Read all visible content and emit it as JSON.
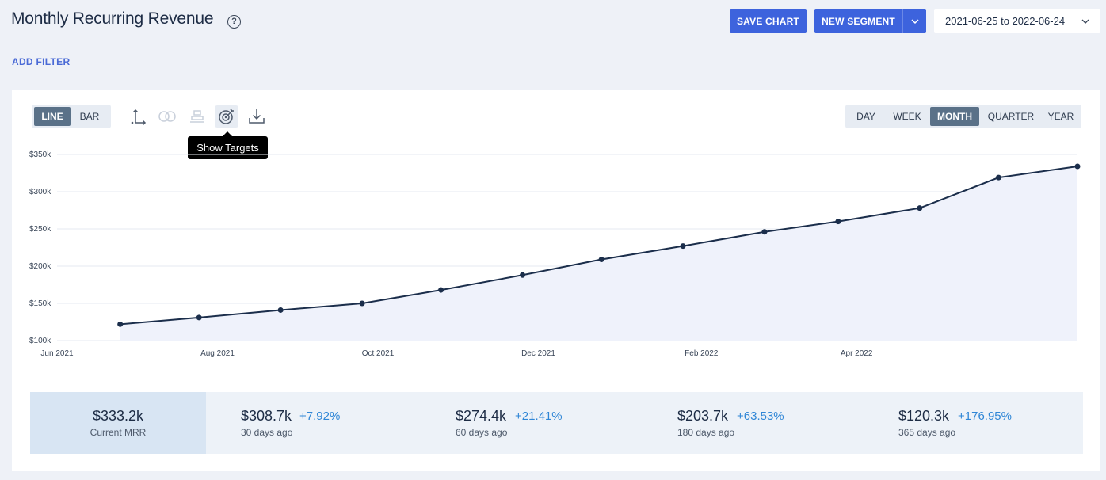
{
  "header": {
    "title": "Monthly Recurring Revenue",
    "help": "?",
    "save_chart_label": "SAVE CHART",
    "new_segment_label": "NEW SEGMENT",
    "date_range": "2021-06-25 to 2022-06-24",
    "add_filter_label": "ADD FILTER"
  },
  "toolbar": {
    "chart_types": [
      {
        "label": "LINE",
        "active": true
      },
      {
        "label": "BAR",
        "active": false
      }
    ],
    "icons": [
      "axis-icon",
      "compare-icon",
      "stack-icon",
      "target-icon",
      "download-icon"
    ],
    "tooltip": "Show Targets",
    "intervals": [
      {
        "label": "DAY",
        "active": false
      },
      {
        "label": "WEEK",
        "active": false
      },
      {
        "label": "MONTH",
        "active": true
      },
      {
        "label": "QUARTER",
        "active": false
      },
      {
        "label": "YEAR",
        "active": false
      }
    ]
  },
  "chart_data": {
    "type": "area",
    "x": [
      "2021-06-25",
      "2021-07-25",
      "2021-08-25",
      "2021-09-25",
      "2021-10-25",
      "2021-11-25",
      "2021-12-25",
      "2022-01-25",
      "2022-02-25",
      "2022-03-25",
      "2022-04-25",
      "2022-05-25",
      "2022-06-24"
    ],
    "values": [
      122000,
      131000,
      141000,
      150000,
      168000,
      188000,
      209000,
      227000,
      246000,
      260000,
      278000,
      319000,
      334000
    ],
    "ylim": [
      100000,
      350000
    ],
    "y_ticks": [
      {
        "value": 100000,
        "label": "$100k"
      },
      {
        "value": 150000,
        "label": "$150k"
      },
      {
        "value": 200000,
        "label": "$200k"
      },
      {
        "value": 250000,
        "label": "$250k"
      },
      {
        "value": 300000,
        "label": "$300k"
      },
      {
        "value": 350000,
        "label": "$350k"
      }
    ],
    "x_ticks": [
      {
        "value": "2021-06-01",
        "label": "Jun 2021"
      },
      {
        "value": "2021-08-01",
        "label": "Aug 2021"
      },
      {
        "value": "2021-10-01",
        "label": "Oct 2021"
      },
      {
        "value": "2021-12-01",
        "label": "Dec 2021"
      },
      {
        "value": "2022-02-01",
        "label": "Feb 2022"
      },
      {
        "value": "2022-04-01",
        "label": "Apr 2022"
      }
    ],
    "grid": true,
    "line_color": "#1b2e4b",
    "fill_color": "#eff2fb"
  },
  "stats": {
    "current": {
      "value": "$333.2k",
      "label": "Current MRR"
    },
    "history": [
      {
        "value": "$308.7k",
        "change": "+7.92%",
        "label": "30 days ago"
      },
      {
        "value": "$274.4k",
        "change": "+21.41%",
        "label": "60 days ago"
      },
      {
        "value": "$203.7k",
        "change": "+63.53%",
        "label": "180 days ago"
      },
      {
        "value": "$120.3k",
        "change": "+176.95%",
        "label": "365 days ago"
      }
    ]
  },
  "colors": {
    "accent": "#3d63dd",
    "change": "#2f86d6",
    "active_toggle": "#5a7188"
  }
}
